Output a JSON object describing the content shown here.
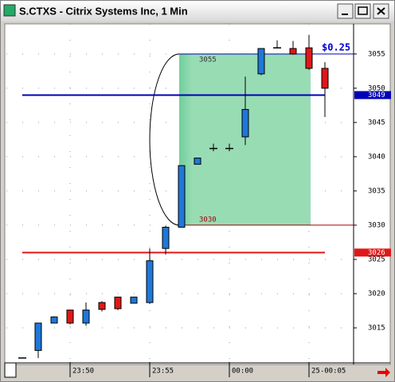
{
  "window": {
    "title": "S.CTXS - Citrix Systems Inc, 1 Min"
  },
  "chart_data": {
    "type": "candlestick",
    "categories": [
      null,
      null,
      null,
      "23:50",
      null,
      null,
      null,
      null,
      "23:55",
      null,
      null,
      null,
      null,
      "00:00",
      null,
      null,
      null,
      null,
      "25-00:05",
      null
    ],
    "open": [
      3010.6,
      3011.7,
      3015.7,
      3017.6,
      3015.7,
      3018.7,
      3019.5,
      3018.6,
      3018.7,
      3026.6,
      3029.7,
      3038.9,
      3041.2,
      3041.2,
      3042.9,
      3052.1,
      3055.9,
      3055.8,
      3055.9,
      3052.9
    ],
    "high": [
      3010.6,
      3015.7,
      3016.7,
      3017.6,
      3018.7,
      3018.9,
      3019.5,
      3019.5,
      3026.6,
      3029.9,
      3038.7,
      3039.8,
      3041.9,
      3041.9,
      3051.7,
      3055.8,
      3057.0,
      3056.9,
      3057.8,
      3053.8
    ],
    "low": [
      3010.6,
      3010.6,
      3015.7,
      3015.5,
      3015.3,
      3017.4,
      3017.6,
      3018.6,
      3018.5,
      3025.7,
      3029.7,
      3038.9,
      3040.8,
      3040.8,
      3041.7,
      3051.9,
      3055.9,
      3054.9,
      3052.7,
      3045.8
    ],
    "close": [
      3010.6,
      3015.7,
      3016.6,
      3015.7,
      3017.6,
      3017.7,
      3017.8,
      3019.5,
      3024.8,
      3029.7,
      3038.7,
      3039.8,
      3041.2,
      3041.2,
      3046.9,
      3055.8,
      3055.9,
      3055.0,
      3052.9,
      3050.0
    ],
    "up_color": "#1e78d8",
    "down_color": "#e01818",
    "ylim": [
      3010,
      3059.4
    ],
    "yticks": [
      3015,
      3020,
      3025,
      3030,
      3035,
      3040,
      3045,
      3050,
      3055
    ],
    "grid": true,
    "price_markers": [
      {
        "value": 3049,
        "color": "#0000b8"
      },
      {
        "value": 3026,
        "color": "#e01818"
      }
    ],
    "annotation": {
      "high": 3055,
      "low": 3030,
      "text": "$0.25",
      "color": "#66cc99"
    }
  }
}
